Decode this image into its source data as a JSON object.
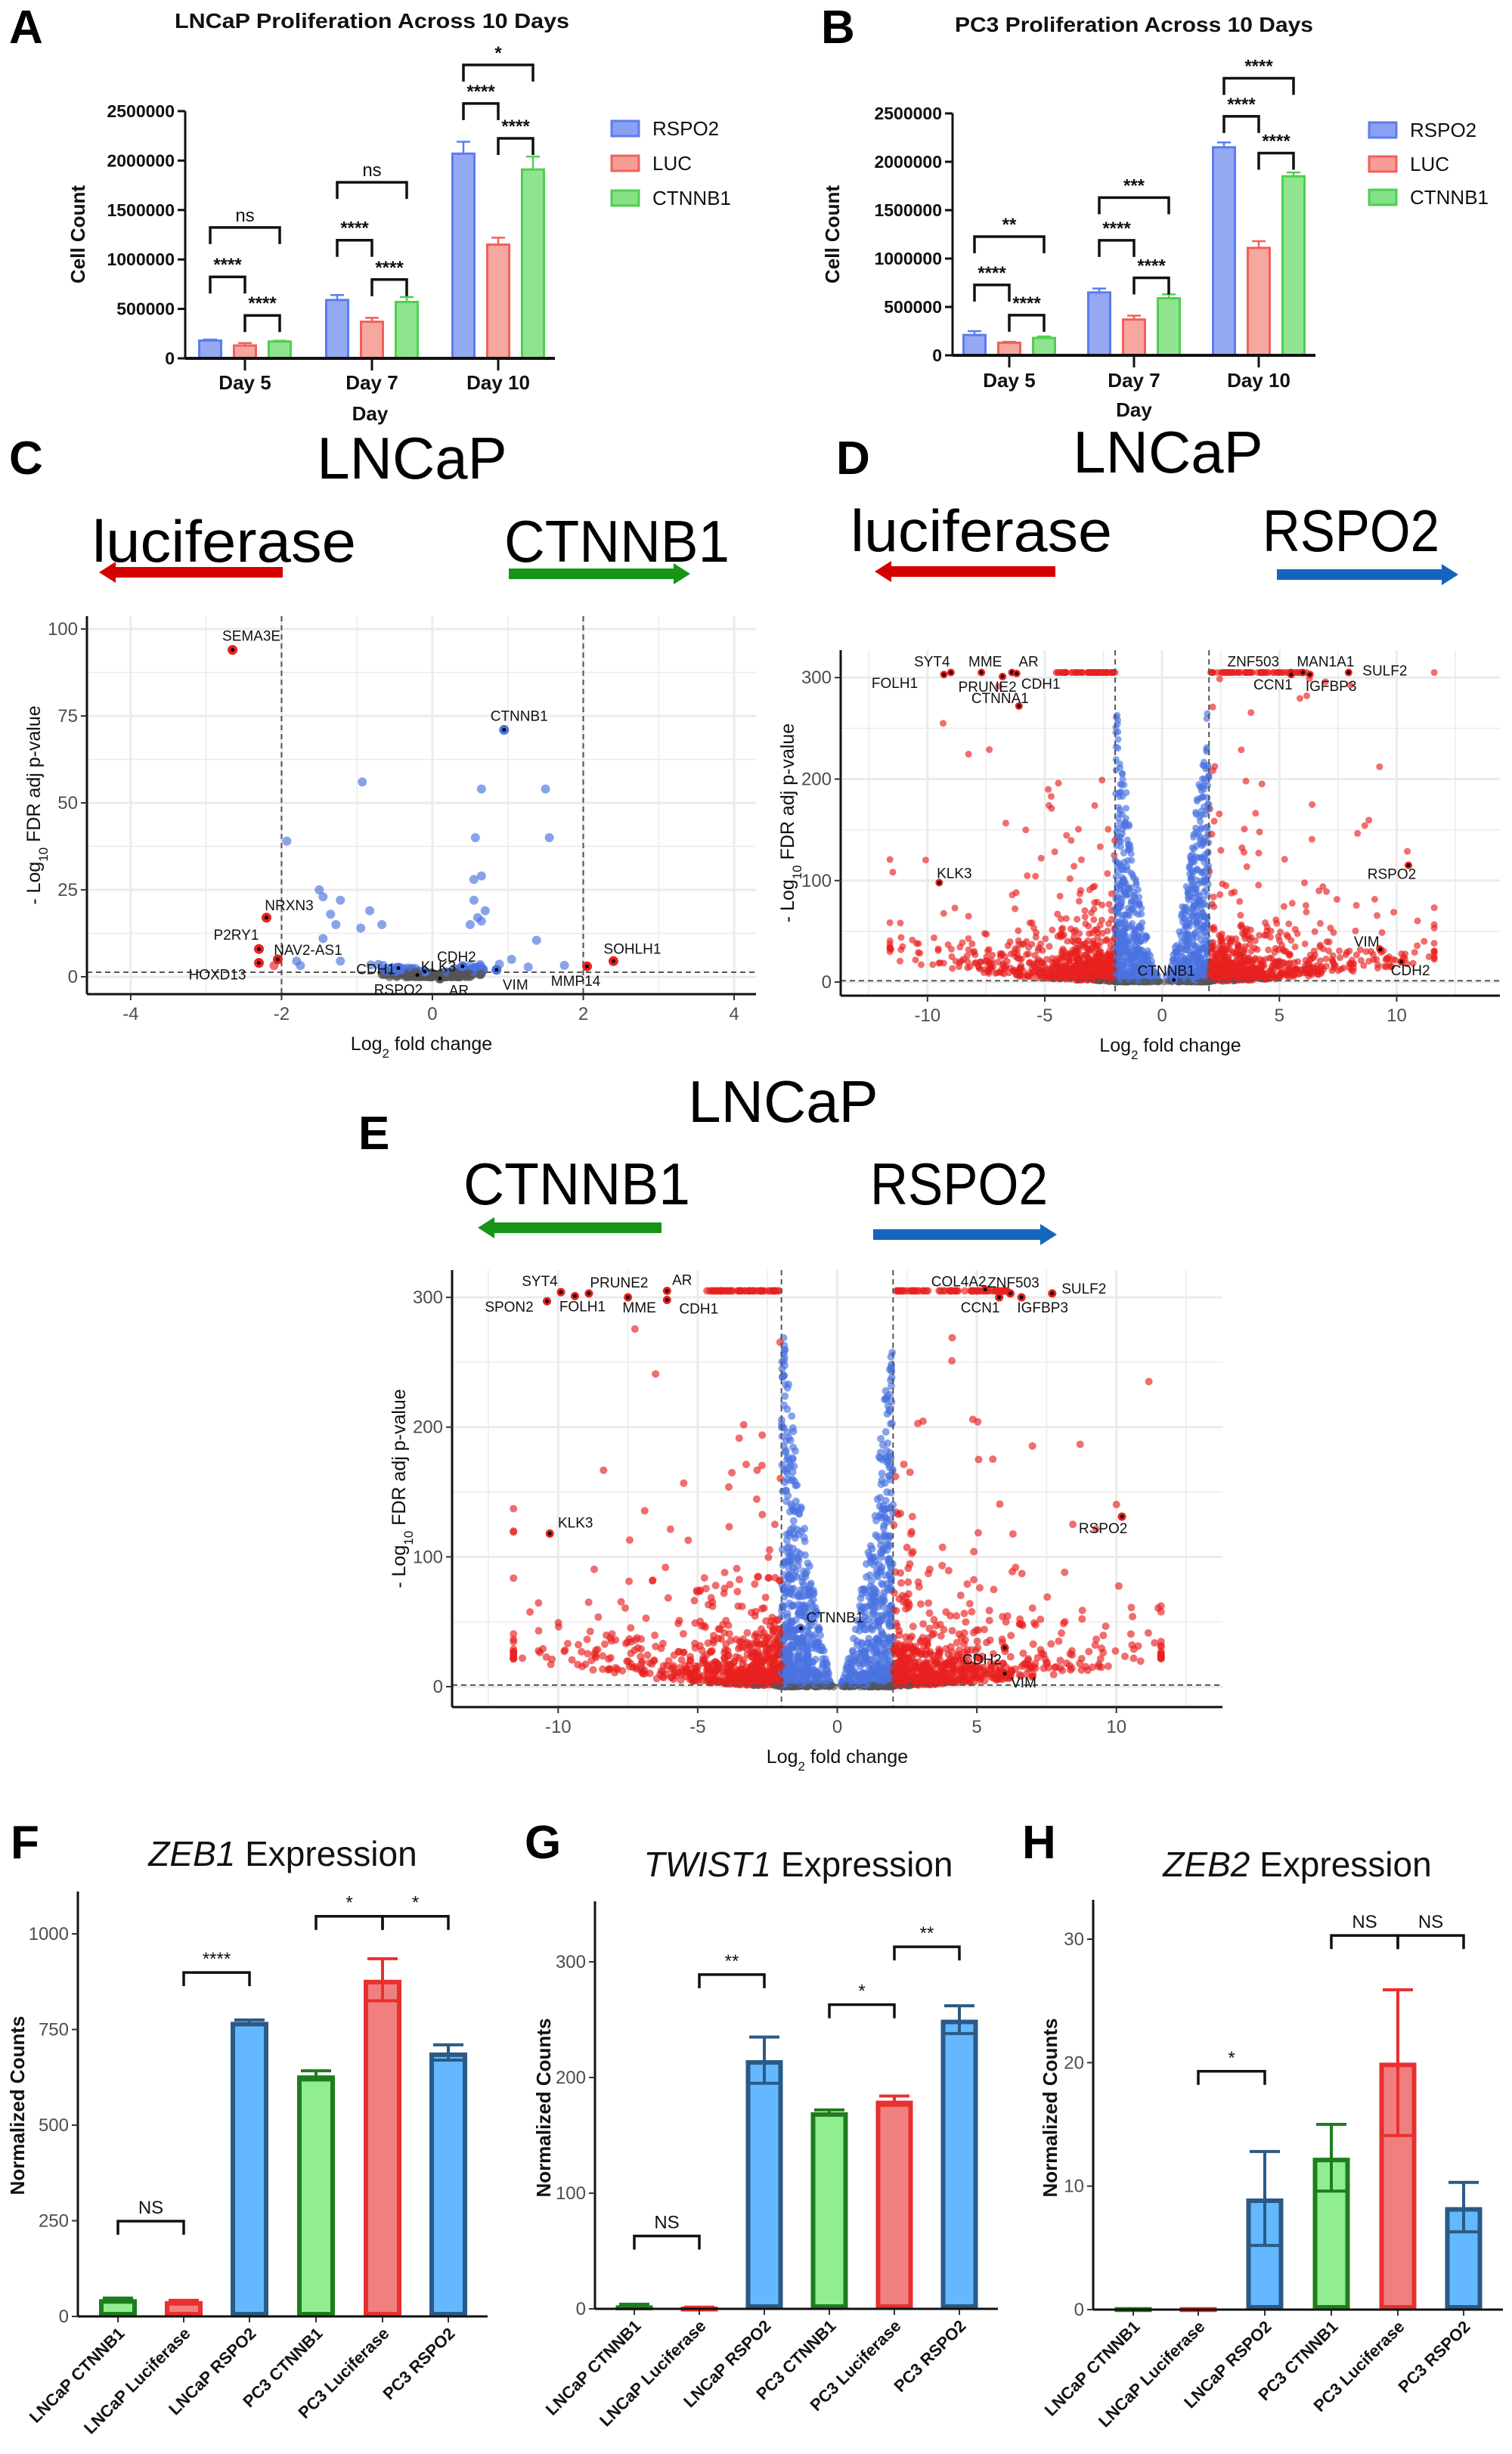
{
  "panel_labels": {
    "A": "A",
    "B": "B",
    "C": "C",
    "D": "D",
    "E": "E",
    "F": "F",
    "G": "G",
    "H": "H"
  },
  "chart_data": [
    {
      "panel": "A",
      "type": "bar",
      "title": "LNCaP Proliferation Across 10 Days",
      "xlabel": "Day",
      "ylabel": "Cell Count",
      "categories": [
        "Day 5",
        "Day 7",
        "Day 10"
      ],
      "ylim": [
        0,
        2500000
      ],
      "yticks": [
        0,
        500000,
        1000000,
        1500000,
        2000000,
        2500000
      ],
      "legend": "right",
      "series": [
        {
          "name": "RSPO2",
          "fill": "#8aa0f2",
          "color": "#5b7cf0",
          "values": [
            180000,
            590000,
            2070000
          ],
          "errors": [
            10000,
            50000,
            120000
          ]
        },
        {
          "name": "LUC",
          "fill": "#f59d96",
          "color": "#f0605a",
          "values": [
            130000,
            370000,
            1150000
          ],
          "errors": [
            25000,
            40000,
            70000
          ]
        },
        {
          "name": "CTNNB1",
          "fill": "#84e184",
          "color": "#4fcf4f",
          "values": [
            170000,
            570000,
            1910000
          ],
          "errors": [
            8000,
            50000,
            130000
          ]
        }
      ],
      "significance": [
        {
          "category": 0,
          "from": 0,
          "to": 1,
          "level": 824000,
          "label": "****"
        },
        {
          "category": 0,
          "from": 1,
          "to": 2,
          "level": 434000,
          "label": "****"
        },
        {
          "category": 0,
          "from": 0,
          "to": 2,
          "level": 1324000,
          "label": "ns"
        },
        {
          "category": 1,
          "from": 0,
          "to": 1,
          "level": 1195000,
          "label": "****"
        },
        {
          "category": 1,
          "from": 1,
          "to": 2,
          "level": 797000,
          "label": "****"
        },
        {
          "category": 1,
          "from": 0,
          "to": 2,
          "level": 1780000,
          "label": "ns"
        },
        {
          "category": 2,
          "from": 0,
          "to": 1,
          "level": 2577000,
          "label": "****"
        },
        {
          "category": 2,
          "from": 1,
          "to": 2,
          "level": 2225000,
          "label": "****"
        },
        {
          "category": 2,
          "from": 0,
          "to": 2,
          "level": 2967000,
          "label": "*"
        }
      ]
    },
    {
      "panel": "B",
      "type": "bar",
      "title": "PC3 Proliferation Across 10 Days",
      "xlabel": "Day",
      "ylabel": "Cell Count",
      "categories": [
        "Day 5",
        "Day 7",
        "Day 10"
      ],
      "ylim": [
        0,
        2500000
      ],
      "yticks": [
        0,
        500000,
        1000000,
        1500000,
        2000000,
        2500000
      ],
      "legend": "right",
      "series": [
        {
          "name": "RSPO2",
          "fill": "#8aa0f2",
          "color": "#5b7cf0",
          "values": [
            210000,
            650000,
            2150000
          ],
          "errors": [
            40000,
            40000,
            50000
          ]
        },
        {
          "name": "LUC",
          "fill": "#f59d96",
          "color": "#f0605a",
          "values": [
            130000,
            370000,
            1110000
          ],
          "errors": [
            10000,
            40000,
            70000
          ]
        },
        {
          "name": "CTNNB1",
          "fill": "#84e184",
          "color": "#4fcf4f",
          "values": [
            180000,
            590000,
            1850000
          ],
          "errors": [
            15000,
            40000,
            40000
          ]
        }
      ],
      "significance": [
        {
          "category": 0,
          "from": 0,
          "to": 1,
          "level": 728000,
          "label": "****"
        },
        {
          "category": 0,
          "from": 1,
          "to": 2,
          "level": 415000,
          "label": "****"
        },
        {
          "category": 0,
          "from": 0,
          "to": 2,
          "level": 1227000,
          "label": "**"
        },
        {
          "category": 1,
          "from": 0,
          "to": 1,
          "level": 1188000,
          "label": "****"
        },
        {
          "category": 1,
          "from": 1,
          "to": 2,
          "level": 801000,
          "label": "****"
        },
        {
          "category": 1,
          "from": 0,
          "to": 2,
          "level": 1630000,
          "label": "***"
        },
        {
          "category": 2,
          "from": 0,
          "to": 1,
          "level": 2470000,
          "label": "****"
        },
        {
          "category": 2,
          "from": 1,
          "to": 2,
          "level": 2090000,
          "label": "****"
        },
        {
          "category": 2,
          "from": 0,
          "to": 2,
          "level": 2863000,
          "label": "****"
        }
      ]
    },
    {
      "panel": "C",
      "type": "scatter",
      "header": {
        "cell_line": "LNCaP",
        "left": "luciferase",
        "right": "CTNNB1",
        "left_arrow_color": "#d40000",
        "right_arrow_color": "#169416"
      },
      "xlabel": {
        "base": "Log",
        "sub": "2",
        "rest": " fold change"
      },
      "ylabel": {
        "base": "- Log",
        "sub": "10",
        "rest": " FDR adj p-value"
      },
      "xlim": [
        -4.58,
        4.29
      ],
      "ylim": [
        -5,
        103.7
      ],
      "xticks": [
        -4,
        -2,
        0,
        2,
        4
      ],
      "yticks": [
        0,
        25,
        50,
        75,
        100
      ],
      "thresholds": {
        "log2fc": 2,
        "neg_log10_fdr": 1.3
      },
      "colors": {
        "significant": "#e8211f",
        "fdr_only": "#4a72e0",
        "not_significant": "#555555"
      },
      "grid": true,
      "labeled_genes": [
        {
          "gene": "SEMA3E",
          "x": -2.65,
          "y": 94
        },
        {
          "gene": "CTNNB1",
          "x": 0.95,
          "y": 71
        },
        {
          "gene": "NRXN3",
          "x": -2.2,
          "y": 17
        },
        {
          "gene": "P2RY1",
          "x": -2.3,
          "y": 8
        },
        {
          "gene": "NAV2-AS1",
          "x": -2.05,
          "y": 5
        },
        {
          "gene": "HOXD13",
          "x": -2.3,
          "y": 4
        },
        {
          "gene": "CDH1",
          "x": -0.45,
          "y": 2.5
        },
        {
          "gene": "KLK3",
          "x": -0.1,
          "y": 1.5
        },
        {
          "gene": "CDH2",
          "x": 0.4,
          "y": 3
        },
        {
          "gene": "RSPO2",
          "x": -0.2,
          "y": 0.5
        },
        {
          "gene": "AR",
          "x": 0.1,
          "y": -0.5
        },
        {
          "gene": "VIM",
          "x": 0.85,
          "y": 2
        },
        {
          "gene": "MMP14",
          "x": 2.05,
          "y": 3
        },
        {
          "gene": "SOHLH1",
          "x": 2.4,
          "y": 4.5
        }
      ],
      "points": [
        [
          -0.93,
          56
        ],
        [
          0.65,
          54
        ],
        [
          1.5,
          54
        ],
        [
          0.57,
          40
        ],
        [
          1.55,
          40
        ],
        [
          -1.93,
          39
        ],
        [
          0.65,
          29
        ],
        [
          0.55,
          28
        ],
        [
          -1.5,
          25
        ],
        [
          -1.45,
          23
        ],
        [
          -1.22,
          22
        ],
        [
          0.55,
          22
        ],
        [
          0.7,
          19
        ],
        [
          -0.83,
          19
        ],
        [
          -1.35,
          18
        ],
        [
          0.6,
          17
        ],
        [
          0.65,
          16
        ],
        [
          -1.28,
          15
        ],
        [
          -0.67,
          15
        ],
        [
          0.5,
          15
        ],
        [
          -0.95,
          14
        ],
        [
          1.38,
          10.5
        ],
        [
          -1.45,
          11
        ],
        [
          -1.8,
          4.5
        ],
        [
          -1.75,
          3.2
        ],
        [
          1.05,
          5
        ],
        [
          1.75,
          3.3
        ],
        [
          -1.22,
          4.5
        ],
        [
          1.27,
          2.8
        ],
        [
          -2.1,
          3.2
        ]
      ]
    },
    {
      "panel": "D",
      "type": "scatter",
      "header": {
        "cell_line": "LNCaP",
        "left": "luciferase",
        "right": "RSPO2",
        "left_arrow_color": "#d40000",
        "right_arrow_color": "#1565c0"
      },
      "xlabel": {
        "base": "Log",
        "sub": "2",
        "rest": " fold change"
      },
      "ylabel": {
        "base": "- Log",
        "sub": "10",
        "rest": " FDR adj p-value"
      },
      "xlim": [
        -13.7,
        14.4
      ],
      "ylim": [
        -13.4,
        327
      ],
      "xticks": [
        -10,
        -5,
        0,
        5,
        10
      ],
      "yticks": [
        0,
        100,
        200,
        300
      ],
      "thresholds": {
        "log2fc": 2,
        "neg_log10_fdr": 1.3
      },
      "colors": {
        "significant": "#e8211f",
        "fdr_only": "#4a72e0",
        "not_significant": "#555555"
      },
      "grid": true,
      "labeled_genes": [
        {
          "gene": "SYT4",
          "x": -9.0,
          "y": 305
        },
        {
          "gene": "FOLH1",
          "x": -9.3,
          "y": 303
        },
        {
          "gene": "MME",
          "x": -7.7,
          "y": 305
        },
        {
          "gene": "PRUNE2",
          "x": -6.8,
          "y": 301
        },
        {
          "gene": "AR",
          "x": -6.4,
          "y": 305
        },
        {
          "gene": "CDH1",
          "x": -6.2,
          "y": 304
        },
        {
          "gene": "CTNNA1",
          "x": -6.1,
          "y": 272
        },
        {
          "gene": "KLK3",
          "x": -9.5,
          "y": 98
        },
        {
          "gene": "ZNF503",
          "x": 5.5,
          "y": 305
        },
        {
          "gene": "MAN1A1",
          "x": 6.0,
          "y": 305
        },
        {
          "gene": "CCN1",
          "x": 5.5,
          "y": 303
        },
        {
          "gene": "IGFBP3",
          "x": 6.3,
          "y": 303
        },
        {
          "gene": "SULF2",
          "x": 7.95,
          "y": 305
        },
        {
          "gene": "RSPO2",
          "x": 10.5,
          "y": 115
        },
        {
          "gene": "VIM",
          "x": 9.3,
          "y": 32
        },
        {
          "gene": "CDH2",
          "x": 10.2,
          "y": 20
        },
        {
          "gene": "CTNNB1",
          "x": 0.5,
          "y": 2
        }
      ]
    },
    {
      "panel": "E",
      "type": "scatter",
      "header": {
        "cell_line": "LNCaP",
        "left": "CTNNB1",
        "right": "RSPO2",
        "left_arrow_color": "#169416",
        "right_arrow_color": "#1565c0"
      },
      "xlabel": {
        "base": "Log",
        "sub": "2",
        "rest": " fold change"
      },
      "ylabel": {
        "base": "- Log",
        "sub": "10",
        "rest": " FDR adj p-value"
      },
      "xlim": [
        -13.8,
        13.8
      ],
      "ylim": [
        -15.7,
        321
      ],
      "xticks": [
        -10,
        -5,
        0,
        5,
        10
      ],
      "yticks": [
        0,
        100,
        200,
        300
      ],
      "thresholds": {
        "log2fc": 2,
        "neg_log10_fdr": 1.3
      },
      "colors": {
        "significant": "#e8211f",
        "fdr_only": "#4a72e0",
        "not_significant": "#555555"
      },
      "grid": true,
      "labeled_genes": [
        {
          "gene": "SYT4",
          "x": -9.9,
          "y": 304
        },
        {
          "gene": "SPON2",
          "x": -10.4,
          "y": 297
        },
        {
          "gene": "PRUNE2",
          "x": -8.9,
          "y": 303
        },
        {
          "gene": "FOLH1",
          "x": -9.4,
          "y": 301
        },
        {
          "gene": "AR",
          "x": -6.1,
          "y": 305
        },
        {
          "gene": "MME",
          "x": -7.5,
          "y": 300
        },
        {
          "gene": "CDH1",
          "x": -6.1,
          "y": 298
        },
        {
          "gene": "KLK3",
          "x": -10.3,
          "y": 118
        },
        {
          "gene": "COL4A2",
          "x": 5.3,
          "y": 306
        },
        {
          "gene": "ZNF503",
          "x": 6.2,
          "y": 303
        },
        {
          "gene": "CCN1",
          "x": 5.8,
          "y": 300
        },
        {
          "gene": "IGFBP3",
          "x": 6.6,
          "y": 300
        },
        {
          "gene": "SULF2",
          "x": 7.7,
          "y": 303
        },
        {
          "gene": "RSPO2",
          "x": 10.2,
          "y": 131
        },
        {
          "gene": "CTNNB1",
          "x": -1.3,
          "y": 45
        },
        {
          "gene": "CDH2",
          "x": 6.0,
          "y": 30
        },
        {
          "gene": "VIM",
          "x": 6.0,
          "y": 10
        }
      ]
    },
    {
      "panel": "F",
      "type": "bar",
      "title": {
        "gene": "ZEB1",
        "rest": " Expression"
      },
      "ylabel": "Normalized Counts",
      "categories": [
        "LNCaP CTNNB1",
        "LNCaP Luciferase",
        "LNCaP RSPO2",
        "PC3 CTNNB1",
        "PC3 Luciferase",
        "PC3 RSPO2"
      ],
      "values": [
        45,
        40,
        770,
        630,
        880,
        690
      ],
      "errors": [
        3,
        2,
        5,
        12,
        55,
        20
      ],
      "ylim": [
        0,
        1110
      ],
      "yticks": [
        0,
        250,
        500,
        750,
        1000
      ],
      "fills": [
        "#90ee90",
        "#f08080",
        "#63b8ff",
        "#90ee90",
        "#f08080",
        "#63b8ff"
      ],
      "strokes": [
        "#1e7d1e",
        "#e8302f",
        "#2a5a85",
        "#1e7d1e",
        "#e8302f",
        "#2a5a85"
      ],
      "significance": [
        {
          "from": 0,
          "to": 1,
          "level": 249,
          "label": "NS"
        },
        {
          "from": 1,
          "to": 2,
          "level": 899,
          "label": "****"
        },
        {
          "from": 3,
          "to": 4,
          "level": 1046,
          "label": "*"
        },
        {
          "from": 4,
          "to": 5,
          "level": 1046,
          "label": "*"
        }
      ]
    },
    {
      "panel": "G",
      "type": "bar",
      "title": {
        "gene": "TWIST1",
        "rest": " Expression"
      },
      "ylabel": "Normalized Counts",
      "categories": [
        "LNCaP CTNNB1",
        "LNCaP Luciferase",
        "LNCaP RSPO2",
        "PC3 CTNNB1",
        "PC3 Luciferase",
        "PC3 RSPO2"
      ],
      "values": [
        3,
        1,
        215,
        170,
        180,
        250
      ],
      "errors": [
        1,
        0.5,
        20,
        2,
        4,
        12
      ],
      "ylim": [
        0,
        352
      ],
      "yticks": [
        0,
        100,
        200,
        300
      ],
      "fills": [
        "#90ee90",
        "#f08080",
        "#63b8ff",
        "#90ee90",
        "#f08080",
        "#63b8ff"
      ],
      "strokes": [
        "#1e7d1e",
        "#e8302f",
        "#2a5a85",
        "#1e7d1e",
        "#e8302f",
        "#2a5a85"
      ],
      "significance": [
        {
          "from": 0,
          "to": 1,
          "level": 63,
          "label": "NS"
        },
        {
          "from": 1,
          "to": 2,
          "level": 289,
          "label": "**"
        },
        {
          "from": 3,
          "to": 4,
          "level": 263,
          "label": "*"
        },
        {
          "from": 4,
          "to": 5,
          "level": 313,
          "label": "**"
        }
      ]
    },
    {
      "panel": "H",
      "type": "bar",
      "title": {
        "gene": "ZEB2",
        "rest": " Expression"
      },
      "ylabel": "Normalized Counts",
      "categories": [
        "LNCaP CTNNB1",
        "LNCaP Luciferase",
        "LNCaP RSPO2",
        "PC3 CTNNB1",
        "PC3 Luciferase",
        "PC3 RSPO2"
      ],
      "values": [
        0.2,
        0.2,
        9.0,
        12.3,
        20.0,
        8.3
      ],
      "errors": [
        0,
        0,
        3.8,
        2.7,
        5.9,
        2.0
      ],
      "ylim": [
        0,
        33.2
      ],
      "yticks": [
        0,
        10,
        20,
        30
      ],
      "fills": [
        "#90ee90",
        "#f08080",
        "#63b8ff",
        "#90ee90",
        "#f08080",
        "#63b8ff"
      ],
      "strokes": [
        "#1e7d1e",
        "#e8302f",
        "#2a5a85",
        "#1e7d1e",
        "#e8302f",
        "#2a5a85"
      ],
      "significance": [
        {
          "from": 1,
          "to": 2,
          "level": 19.3,
          "label": "*"
        },
        {
          "from": 3,
          "to": 4,
          "level": 30.3,
          "label": "NS"
        },
        {
          "from": 4,
          "to": 5,
          "level": 30.3,
          "label": "NS"
        }
      ]
    }
  ]
}
